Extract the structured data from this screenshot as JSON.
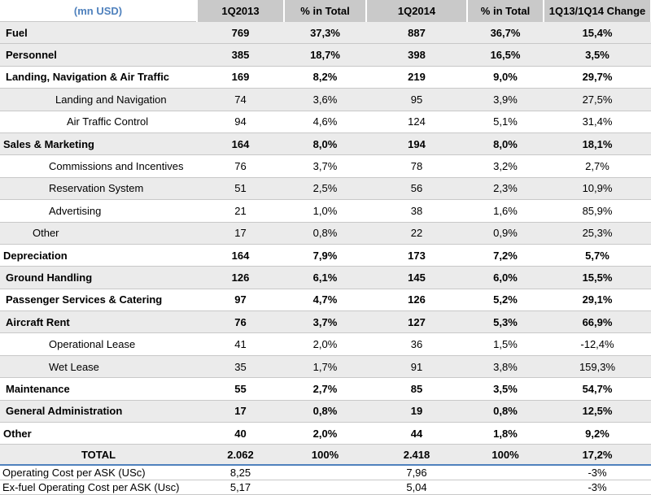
{
  "header": {
    "unit_label": "(mn USD)",
    "col_1q2013": "1Q2013",
    "col_pct_2013": "% in Total",
    "col_1q2014": "1Q2014",
    "col_pct_2014": "% in Total",
    "col_change": "1Q13/1Q14 Change"
  },
  "rows": [
    {
      "label": "Fuel",
      "v2013": "769",
      "p2013": "37,3%",
      "v2014": "887",
      "p2014": "36,7%",
      "change": "15,4%"
    },
    {
      "label": "Personnel",
      "v2013": "385",
      "p2013": "18,7%",
      "v2014": "398",
      "p2014": "16,5%",
      "change": "3,5%"
    },
    {
      "label": "Landing,  Navigation &  Air Traffic",
      "v2013": "169",
      "p2013": "8,2%",
      "v2014": "219",
      "p2014": "9,0%",
      "change": "29,7%"
    },
    {
      "label": "Landing and Navigation",
      "v2013": "74",
      "p2013": "3,6%",
      "v2014": "95",
      "p2014": "3,9%",
      "change": "27,5%"
    },
    {
      "label": "Air Traffic Control",
      "v2013": "94",
      "p2013": "4,6%",
      "v2014": "124",
      "p2014": "5,1%",
      "change": "31,4%"
    },
    {
      "label": "Sales & Marketing",
      "v2013": "164",
      "p2013": "8,0%",
      "v2014": "194",
      "p2014": "8,0%",
      "change": "18,1%"
    },
    {
      "label": "Commissions and Incentives",
      "v2013": "76",
      "p2013": "3,7%",
      "v2014": "78",
      "p2014": "3,2%",
      "change": "2,7%"
    },
    {
      "label": "Reservation System",
      "v2013": "51",
      "p2013": "2,5%",
      "v2014": "56",
      "p2014": "2,3%",
      "change": "10,9%"
    },
    {
      "label": "Advertising",
      "v2013": "21",
      "p2013": "1,0%",
      "v2014": "38",
      "p2014": "1,6%",
      "change": "85,9%"
    },
    {
      "label": "Other",
      "v2013": "17",
      "p2013": "0,8%",
      "v2014": "22",
      "p2014": "0,9%",
      "change": "25,3%"
    },
    {
      "label": "Depreciation",
      "v2013": "164",
      "p2013": "7,9%",
      "v2014": "173",
      "p2014": "7,2%",
      "change": "5,7%"
    },
    {
      "label": "Ground Handling",
      "v2013": "126",
      "p2013": "6,1%",
      "v2014": "145",
      "p2014": "6,0%",
      "change": "15,5%"
    },
    {
      "label": "Passenger Services & Catering",
      "v2013": "97",
      "p2013": "4,7%",
      "v2014": "126",
      "p2014": "5,2%",
      "change": "29,1%"
    },
    {
      "label": "Aircraft Rent",
      "v2013": "76",
      "p2013": "3,7%",
      "v2014": "127",
      "p2014": "5,3%",
      "change": "66,9%"
    },
    {
      "label": "Operational Lease",
      "v2013": "41",
      "p2013": "2,0%",
      "v2014": "36",
      "p2014": "1,5%",
      "change": "-12,4%"
    },
    {
      "label": "Wet Lease",
      "v2013": "35",
      "p2013": "1,7%",
      "v2014": "91",
      "p2014": "3,8%",
      "change": "159,3%"
    },
    {
      "label": "Maintenance",
      "v2013": "55",
      "p2013": "2,7%",
      "v2014": "85",
      "p2014": "3,5%",
      "change": "54,7%"
    },
    {
      "label": "General Administration",
      "v2013": "17",
      "p2013": "0,8%",
      "v2014": "19",
      "p2014": "0,8%",
      "change": "12,5%"
    },
    {
      "label": "Other",
      "v2013": "40",
      "p2013": "2,0%",
      "v2014": "44",
      "p2014": "1,8%",
      "change": "9,2%"
    }
  ],
  "total": {
    "label": "TOTAL",
    "v2013": "2.062",
    "p2013": "100%",
    "v2014": "2.418",
    "p2014": "100%",
    "change": "17,2%"
  },
  "footer": [
    {
      "label": "Operating Cost per ASK (USc)",
      "v2013": "8,25",
      "v2014": "7,96",
      "change": "-3%"
    },
    {
      "label": "Ex-fuel Operating Cost per ASK (Usc)",
      "v2013": "5,17",
      "v2014": "5,04",
      "change": "-3%"
    }
  ]
}
